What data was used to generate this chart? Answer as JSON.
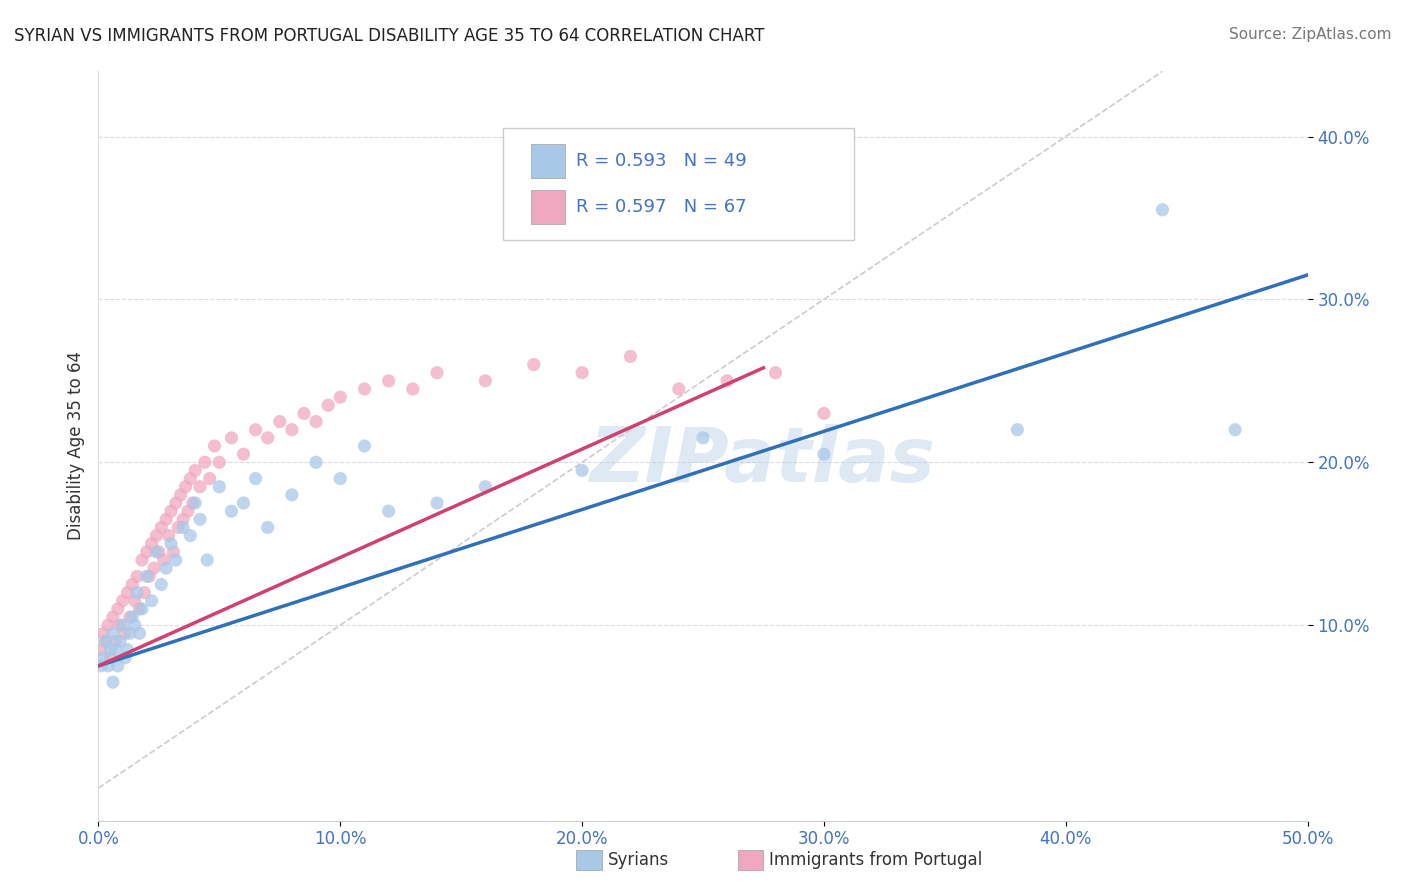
{
  "title": "SYRIAN VS IMMIGRANTS FROM PORTUGAL DISABILITY AGE 35 TO 64 CORRELATION CHART",
  "source": "Source: ZipAtlas.com",
  "ylabel": "Disability Age 35 to 64",
  "xmin": 0.0,
  "xmax": 0.5,
  "ymin": -0.02,
  "ymax": 0.44,
  "xtick_vals": [
    0.0,
    0.1,
    0.2,
    0.3,
    0.4,
    0.5
  ],
  "ytick_vals": [
    0.1,
    0.2,
    0.3,
    0.4
  ],
  "color_syrian": "#a8c8e8",
  "color_portugal": "#f0a8c0",
  "color_line_syrian": "#3070b8",
  "color_line_portugal": "#d04070",
  "R_syrian": 0.593,
  "N_syrian": 49,
  "R_portugal": 0.597,
  "N_portugal": 67,
  "watermark": "ZIPatlas",
  "blue_line_x": [
    0.0,
    0.5
  ],
  "blue_line_y": [
    0.075,
    0.315
  ],
  "pink_line_x": [
    0.0,
    0.275
  ],
  "pink_line_y": [
    0.075,
    0.258
  ],
  "diag_line_x": [
    0.0,
    0.44
  ],
  "diag_line_y": [
    0.0,
    0.44
  ],
  "syrian_x": [
    0.001,
    0.002,
    0.003,
    0.004,
    0.005,
    0.006,
    0.006,
    0.007,
    0.008,
    0.009,
    0.01,
    0.011,
    0.012,
    0.013,
    0.014,
    0.015,
    0.016,
    0.017,
    0.018,
    0.02,
    0.022,
    0.024,
    0.026,
    0.028,
    0.03,
    0.032,
    0.035,
    0.038,
    0.04,
    0.042,
    0.045,
    0.05,
    0.055,
    0.06,
    0.065,
    0.07,
    0.08,
    0.09,
    0.1,
    0.11,
    0.12,
    0.14,
    0.16,
    0.2,
    0.25,
    0.3,
    0.38,
    0.44,
    0.47
  ],
  "syrian_y": [
    0.075,
    0.08,
    0.09,
    0.075,
    0.085,
    0.095,
    0.065,
    0.085,
    0.075,
    0.09,
    0.1,
    0.08,
    0.085,
    0.095,
    0.105,
    0.1,
    0.12,
    0.095,
    0.11,
    0.13,
    0.115,
    0.145,
    0.125,
    0.135,
    0.15,
    0.14,
    0.16,
    0.155,
    0.175,
    0.165,
    0.14,
    0.185,
    0.17,
    0.175,
    0.19,
    0.16,
    0.18,
    0.2,
    0.19,
    0.21,
    0.17,
    0.175,
    0.185,
    0.195,
    0.215,
    0.205,
    0.22,
    0.355,
    0.22
  ],
  "portugal_x": [
    0.001,
    0.002,
    0.003,
    0.004,
    0.005,
    0.006,
    0.007,
    0.008,
    0.009,
    0.01,
    0.011,
    0.012,
    0.013,
    0.014,
    0.015,
    0.016,
    0.017,
    0.018,
    0.019,
    0.02,
    0.021,
    0.022,
    0.023,
    0.024,
    0.025,
    0.026,
    0.027,
    0.028,
    0.029,
    0.03,
    0.031,
    0.032,
    0.033,
    0.034,
    0.035,
    0.036,
    0.037,
    0.038,
    0.039,
    0.04,
    0.042,
    0.044,
    0.046,
    0.048,
    0.05,
    0.055,
    0.06,
    0.065,
    0.07,
    0.075,
    0.08,
    0.085,
    0.09,
    0.095,
    0.1,
    0.11,
    0.12,
    0.13,
    0.14,
    0.16,
    0.18,
    0.2,
    0.22,
    0.24,
    0.26,
    0.28,
    0.3
  ],
  "portugal_y": [
    0.085,
    0.095,
    0.09,
    0.1,
    0.08,
    0.105,
    0.09,
    0.11,
    0.1,
    0.115,
    0.095,
    0.12,
    0.105,
    0.125,
    0.115,
    0.13,
    0.11,
    0.14,
    0.12,
    0.145,
    0.13,
    0.15,
    0.135,
    0.155,
    0.145,
    0.16,
    0.14,
    0.165,
    0.155,
    0.17,
    0.145,
    0.175,
    0.16,
    0.18,
    0.165,
    0.185,
    0.17,
    0.19,
    0.175,
    0.195,
    0.185,
    0.2,
    0.19,
    0.21,
    0.2,
    0.215,
    0.205,
    0.22,
    0.215,
    0.225,
    0.22,
    0.23,
    0.225,
    0.235,
    0.24,
    0.245,
    0.25,
    0.245,
    0.255,
    0.25,
    0.26,
    0.255,
    0.265,
    0.245,
    0.25,
    0.255,
    0.23
  ]
}
